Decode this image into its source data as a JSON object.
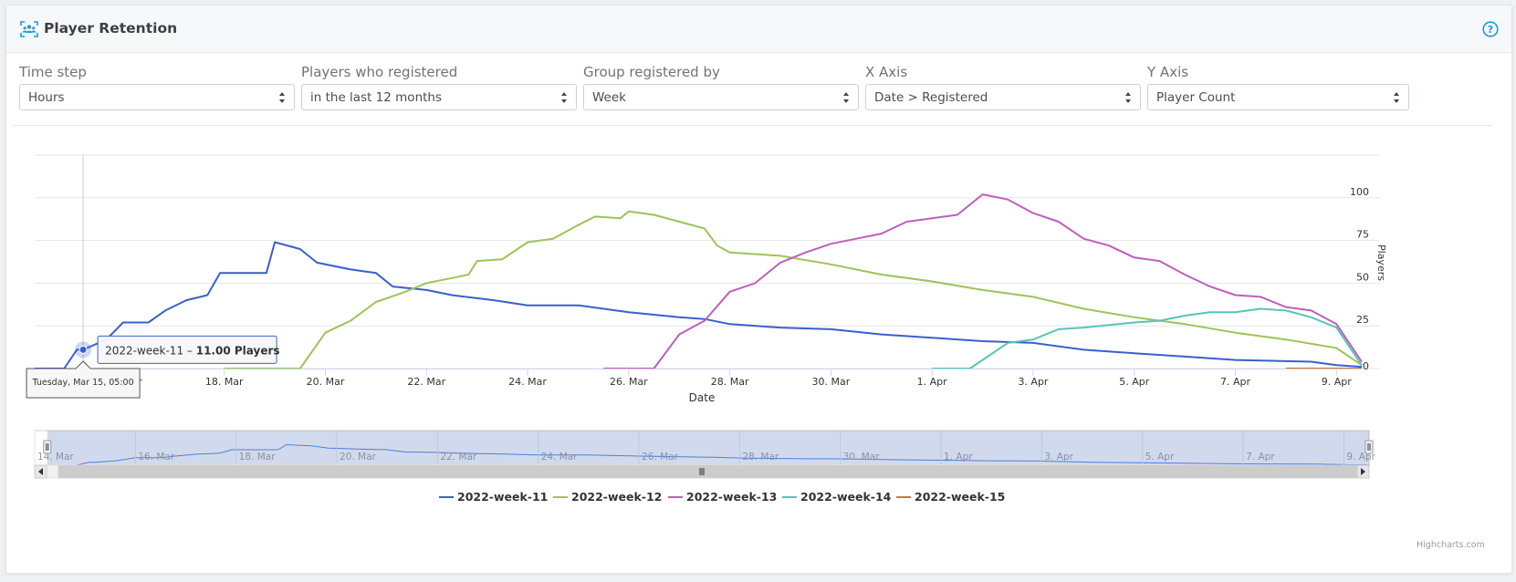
{
  "header": {
    "title": "Player Retention",
    "title_icon": "users-group-icon",
    "help_icon": "question-circle-icon",
    "accent_color": "#1d9bd8"
  },
  "controls": [
    {
      "label": "Time step",
      "value": "Hours"
    },
    {
      "label": "Players who registered",
      "value": "in the last 12 months"
    },
    {
      "label": "Group registered by",
      "value": "Week"
    },
    {
      "label": "X Axis",
      "value": "Date > Registered"
    },
    {
      "label": "Y Axis",
      "value": "Player Count"
    }
  ],
  "credits": "Highcharts.com",
  "chart_data": {
    "type": "line",
    "xlabel": "Date",
    "ylabel": "Players",
    "ylim": [
      0,
      125
    ],
    "yticks": [
      0,
      25,
      50,
      75,
      100
    ],
    "y_axis_side": "right",
    "grid": true,
    "legend_placement": "bottom-center",
    "x_tick_labels": [
      "14. Mar",
      "16. Mar",
      "18. Mar",
      "20. Mar",
      "22. Mar",
      "24. Mar",
      "26. Mar",
      "28. Mar",
      "30. Mar",
      "1. Apr",
      "3. Apr",
      "5. Apr",
      "7. Apr",
      "9. Apr"
    ],
    "x_tick_dates": [
      "2022-03-14",
      "2022-03-16",
      "2022-03-18",
      "2022-03-20",
      "2022-03-22",
      "2022-03-24",
      "2022-03-26",
      "2022-03-28",
      "2022-03-30",
      "2022-04-01",
      "2022-04-03",
      "2022-04-05",
      "2022-04-07",
      "2022-04-09"
    ],
    "x_range": [
      "2022-03-14 00:00",
      "2022-04-09 12:00"
    ],
    "visible_x_range": [
      "2022-03-14 06:00",
      "2022-04-09 12:00"
    ],
    "navigator_x_range": [
      "2022-03-14 00:00",
      "2022-04-09 12:00"
    ],
    "tooltip": {
      "date_text": "Tuesday, Mar 15, 05:00",
      "series_name": "2022-week-11",
      "separator": " – ",
      "value_text": "11.00 Players",
      "x": "2022-03-15 05:00",
      "y": 11
    },
    "series": [
      {
        "name": "2022-week-11",
        "color": "#3a5fcd",
        "points": [
          [
            "2022-03-14 06:00",
            0
          ],
          [
            "2022-03-14 20:00",
            0
          ],
          [
            "2022-03-15 02:00",
            11
          ],
          [
            "2022-03-15 05:00",
            11
          ],
          [
            "2022-03-15 16:00",
            17
          ],
          [
            "2022-03-16 00:00",
            27
          ],
          [
            "2022-03-16 12:00",
            27
          ],
          [
            "2022-03-16 20:00",
            34
          ],
          [
            "2022-03-17 06:00",
            40
          ],
          [
            "2022-03-17 16:00",
            43
          ],
          [
            "2022-03-17 22:00",
            56
          ],
          [
            "2022-03-18 12:00",
            56
          ],
          [
            "2022-03-18 20:00",
            56
          ],
          [
            "2022-03-19 00:00",
            74
          ],
          [
            "2022-03-19 12:00",
            70
          ],
          [
            "2022-03-19 20:00",
            62
          ],
          [
            "2022-03-20 12:00",
            58
          ],
          [
            "2022-03-21 00:00",
            56
          ],
          [
            "2022-03-21 08:00",
            48
          ],
          [
            "2022-03-22 00:00",
            46
          ],
          [
            "2022-03-22 12:00",
            43
          ],
          [
            "2022-03-23 08:00",
            40
          ],
          [
            "2022-03-24 00:00",
            37
          ],
          [
            "2022-03-25 00:00",
            37
          ],
          [
            "2022-03-26 00:00",
            33
          ],
          [
            "2022-03-27 00:00",
            30
          ],
          [
            "2022-03-27 12:00",
            29
          ],
          [
            "2022-03-28 00:00",
            26
          ],
          [
            "2022-03-29 00:00",
            24
          ],
          [
            "2022-03-30 00:00",
            23
          ],
          [
            "2022-03-31 00:00",
            20
          ],
          [
            "2022-04-01 00:00",
            18
          ],
          [
            "2022-04-02 00:00",
            16
          ],
          [
            "2022-04-03 00:00",
            15
          ],
          [
            "2022-04-04 00:00",
            11
          ],
          [
            "2022-04-05 00:00",
            9
          ],
          [
            "2022-04-06 00:00",
            7
          ],
          [
            "2022-04-07 00:00",
            5
          ],
          [
            "2022-04-08 12:00",
            4
          ],
          [
            "2022-04-09 00:00",
            2
          ],
          [
            "2022-04-09 12:00",
            1
          ]
        ]
      },
      {
        "name": "2022-week-12",
        "color": "#9dc456",
        "points": [
          [
            "2022-03-18 00:00",
            0
          ],
          [
            "2022-03-19 12:00",
            0
          ],
          [
            "2022-03-20 00:00",
            21
          ],
          [
            "2022-03-20 12:00",
            28
          ],
          [
            "2022-03-21 00:00",
            39
          ],
          [
            "2022-03-21 12:00",
            44
          ],
          [
            "2022-03-22 00:00",
            50
          ],
          [
            "2022-03-22 12:00",
            53
          ],
          [
            "2022-03-22 20:00",
            55
          ],
          [
            "2022-03-23 00:00",
            63
          ],
          [
            "2022-03-23 12:00",
            64
          ],
          [
            "2022-03-24 00:00",
            74
          ],
          [
            "2022-03-24 12:00",
            76
          ],
          [
            "2022-03-25 00:00",
            84
          ],
          [
            "2022-03-25 08:00",
            89
          ],
          [
            "2022-03-25 20:00",
            88
          ],
          [
            "2022-03-26 00:00",
            92
          ],
          [
            "2022-03-26 12:00",
            90
          ],
          [
            "2022-03-27 00:00",
            86
          ],
          [
            "2022-03-27 12:00",
            82
          ],
          [
            "2022-03-27 18:00",
            72
          ],
          [
            "2022-03-28 00:00",
            68
          ],
          [
            "2022-03-29 00:00",
            66
          ],
          [
            "2022-03-30 00:00",
            61
          ],
          [
            "2022-03-31 00:00",
            55
          ],
          [
            "2022-04-01 00:00",
            51
          ],
          [
            "2022-04-02 00:00",
            46
          ],
          [
            "2022-04-03 00:00",
            42
          ],
          [
            "2022-04-04 00:00",
            35
          ],
          [
            "2022-04-05 00:00",
            30
          ],
          [
            "2022-04-06 00:00",
            26
          ],
          [
            "2022-04-07 00:00",
            21
          ],
          [
            "2022-04-08 00:00",
            17
          ],
          [
            "2022-04-09 00:00",
            12
          ],
          [
            "2022-04-09 12:00",
            2
          ]
        ]
      },
      {
        "name": "2022-week-13",
        "color": "#c15dbb",
        "points": [
          [
            "2022-03-25 12:00",
            0
          ],
          [
            "2022-03-26 12:00",
            0
          ],
          [
            "2022-03-27 00:00",
            20
          ],
          [
            "2022-03-27 12:00",
            28
          ],
          [
            "2022-03-28 00:00",
            45
          ],
          [
            "2022-03-28 12:00",
            50
          ],
          [
            "2022-03-29 00:00",
            62
          ],
          [
            "2022-03-29 12:00",
            68
          ],
          [
            "2022-03-30 00:00",
            73
          ],
          [
            "2022-03-30 12:00",
            76
          ],
          [
            "2022-03-31 00:00",
            79
          ],
          [
            "2022-03-31 12:00",
            86
          ],
          [
            "2022-04-01 00:00",
            88
          ],
          [
            "2022-04-01 12:00",
            90
          ],
          [
            "2022-04-02 00:00",
            102
          ],
          [
            "2022-04-02 12:00",
            99
          ],
          [
            "2022-04-03 00:00",
            91
          ],
          [
            "2022-04-03 12:00",
            86
          ],
          [
            "2022-04-04 00:00",
            76
          ],
          [
            "2022-04-04 12:00",
            72
          ],
          [
            "2022-04-05 00:00",
            65
          ],
          [
            "2022-04-05 12:00",
            63
          ],
          [
            "2022-04-06 00:00",
            55
          ],
          [
            "2022-04-06 12:00",
            48
          ],
          [
            "2022-04-07 00:00",
            43
          ],
          [
            "2022-04-07 12:00",
            42
          ],
          [
            "2022-04-08 00:00",
            36
          ],
          [
            "2022-04-08 12:00",
            34
          ],
          [
            "2022-04-09 00:00",
            26
          ],
          [
            "2022-04-09 12:00",
            4
          ]
        ]
      },
      {
        "name": "2022-week-14",
        "color": "#55c6b5",
        "points": [
          [
            "2022-04-01 00:00",
            0
          ],
          [
            "2022-04-01 18:00",
            0
          ],
          [
            "2022-04-02 12:00",
            15
          ],
          [
            "2022-04-03 00:00",
            17
          ],
          [
            "2022-04-03 12:00",
            23
          ],
          [
            "2022-04-04 00:00",
            24
          ],
          [
            "2022-04-05 00:00",
            27
          ],
          [
            "2022-04-05 12:00",
            28
          ],
          [
            "2022-04-06 00:00",
            31
          ],
          [
            "2022-04-06 12:00",
            33
          ],
          [
            "2022-04-07 00:00",
            33
          ],
          [
            "2022-04-07 12:00",
            35
          ],
          [
            "2022-04-08 00:00",
            34
          ],
          [
            "2022-04-08 12:00",
            30
          ],
          [
            "2022-04-09 00:00",
            24
          ],
          [
            "2022-04-09 12:00",
            2
          ]
        ]
      },
      {
        "name": "2022-week-15",
        "color": "#c77a2e",
        "points": [
          [
            "2022-04-08 00:00",
            0
          ],
          [
            "2022-04-09 12:00",
            0
          ]
        ]
      }
    ]
  }
}
